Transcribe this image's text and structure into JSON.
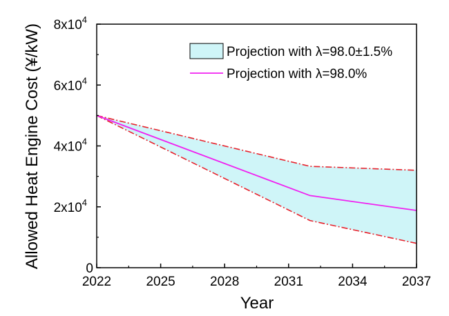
{
  "chart_data": {
    "type": "line",
    "xlabel": "Year",
    "ylabel": "Allowed Heat Engine Cost (¥/kW)",
    "xlim": [
      2022,
      2037
    ],
    "ylim": [
      0,
      80000
    ],
    "x_ticks": [
      {
        "value": 2022,
        "label": "2022"
      },
      {
        "value": 2025,
        "label": "2025"
      },
      {
        "value": 2028,
        "label": "2028"
      },
      {
        "value": 2031,
        "label": "2031"
      },
      {
        "value": 2034,
        "label": "2034"
      },
      {
        "value": 2037,
        "label": "2037"
      }
    ],
    "y_ticks": [
      {
        "value": 0,
        "base": "0",
        "exp": ""
      },
      {
        "value": 20000,
        "base": "2x10",
        "exp": "4"
      },
      {
        "value": 40000,
        "base": "4x10",
        "exp": "4"
      },
      {
        "value": 60000,
        "base": "6x10",
        "exp": "4"
      },
      {
        "value": 80000,
        "base": "8x10",
        "exp": "4"
      }
    ],
    "band": {
      "name": "Projection with λ=98.0±1.5%",
      "color": "#cff5f8",
      "edge_color": "#e8202a",
      "x": [
        2022,
        2032,
        2037
      ],
      "upper": [
        50000,
        33300,
        32000
      ],
      "lower": [
        50000,
        15500,
        8000
      ]
    },
    "series": [
      {
        "name": "Projection with λ=98.0%",
        "color": "#f020f0",
        "x": [
          2022,
          2032,
          2037
        ],
        "values": [
          50000,
          23700,
          18800
        ]
      }
    ],
    "legend_position": "top-right",
    "grid": false
  }
}
